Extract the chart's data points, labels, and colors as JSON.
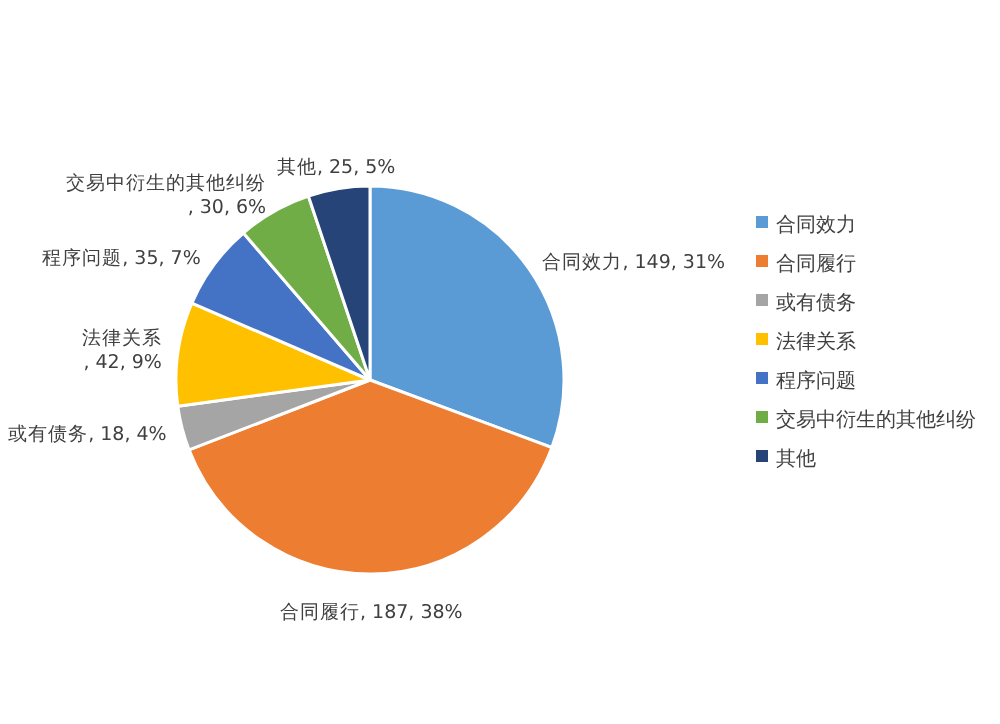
{
  "chart_data": {
    "type": "pie",
    "categories": [
      "合同效力",
      "合同履行",
      "或有债务",
      "法律关系",
      "程序问题",
      "交易中衍生的其他纠纷",
      "其他"
    ],
    "values": [
      149,
      187,
      18,
      42,
      35,
      30,
      25
    ],
    "value_labels": [
      ", 149, 31%",
      ", 187, 38%",
      ", 18, 4%",
      ", 42, 9%",
      ", 35, 7%",
      ", 30, 6%",
      ", 25, 5%"
    ],
    "colors": [
      "#5b9bd5",
      "#ed7d31",
      "#a5a5a5",
      "#ffc000",
      "#4472c4",
      "#70ad47",
      "#264478"
    ],
    "legend": "right"
  }
}
